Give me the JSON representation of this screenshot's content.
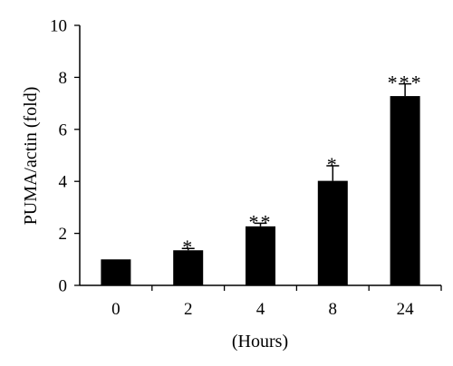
{
  "chart_data": {
    "type": "bar",
    "categories": [
      "0",
      "2",
      "4",
      "8",
      "24"
    ],
    "values": [
      1.0,
      1.35,
      2.27,
      4.02,
      7.28
    ],
    "errors": [
      0.0,
      0.07,
      0.12,
      0.58,
      0.47
    ],
    "significance": [
      "",
      "*",
      "**",
      "*",
      "***"
    ],
    "title": "",
    "xlabel": "(Hours)",
    "ylabel": "PUMA/actin (fold)",
    "ylim": [
      0,
      10
    ],
    "yticks": [
      0,
      2,
      4,
      6,
      8,
      10
    ],
    "grid": false,
    "legend": "none",
    "bar_color": "#000000"
  }
}
